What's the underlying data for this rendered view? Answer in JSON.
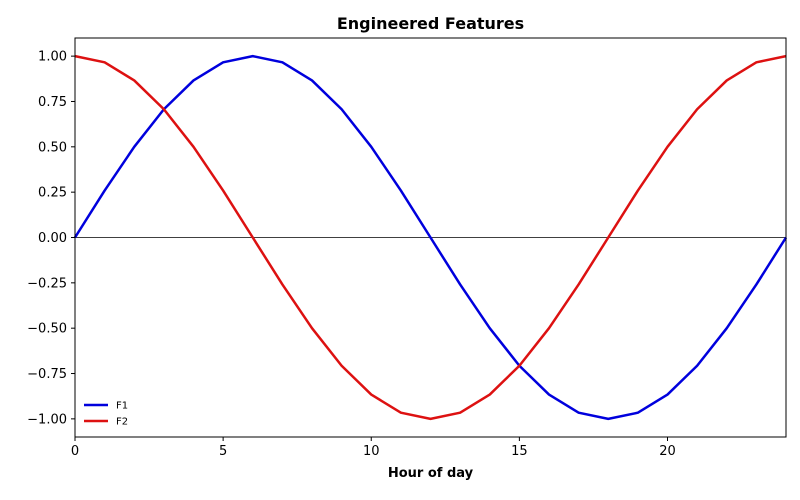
{
  "chart_data": {
    "type": "line",
    "title": "Engineered Features",
    "xlabel": "Hour of day",
    "ylabel": "",
    "xlim": [
      0,
      24
    ],
    "ylim": [
      -1.1,
      1.1
    ],
    "xticks": [
      0,
      5,
      10,
      15,
      20
    ],
    "xtick_labels": [
      "0",
      "5",
      "10",
      "15",
      "20"
    ],
    "yticks": [
      1.0,
      0.75,
      0.5,
      0.25,
      0.0,
      -0.25,
      -0.5,
      -0.75,
      -1.0
    ],
    "ytick_labels": [
      "1.00",
      "0.75",
      "0.50",
      "0.25",
      "0.00",
      "−0.25",
      "−0.50",
      "−0.75",
      "−1.00"
    ],
    "grid": false,
    "zero_line": true,
    "legend_position": "lower-left",
    "x": [
      0,
      1,
      2,
      3,
      4,
      5,
      6,
      7,
      8,
      9,
      10,
      11,
      12,
      13,
      14,
      15,
      16,
      17,
      18,
      19,
      20,
      21,
      22,
      23,
      24
    ],
    "series": [
      {
        "name": "F1",
        "color": "#0000dd",
        "values": [
          0.0,
          0.259,
          0.5,
          0.707,
          0.866,
          0.966,
          1.0,
          0.966,
          0.866,
          0.707,
          0.5,
          0.259,
          0.0,
          -0.259,
          -0.5,
          -0.707,
          -0.866,
          -0.966,
          -1.0,
          -0.966,
          -0.866,
          -0.707,
          -0.5,
          -0.259,
          0.0
        ]
      },
      {
        "name": "F2",
        "color": "#dd1111",
        "values": [
          1.0,
          0.966,
          0.866,
          0.707,
          0.5,
          0.259,
          0.0,
          -0.259,
          -0.5,
          -0.707,
          -0.866,
          -0.966,
          -1.0,
          -0.966,
          -0.866,
          -0.707,
          -0.5,
          -0.259,
          0.0,
          0.259,
          0.5,
          0.707,
          0.866,
          0.966,
          1.0
        ]
      }
    ]
  }
}
